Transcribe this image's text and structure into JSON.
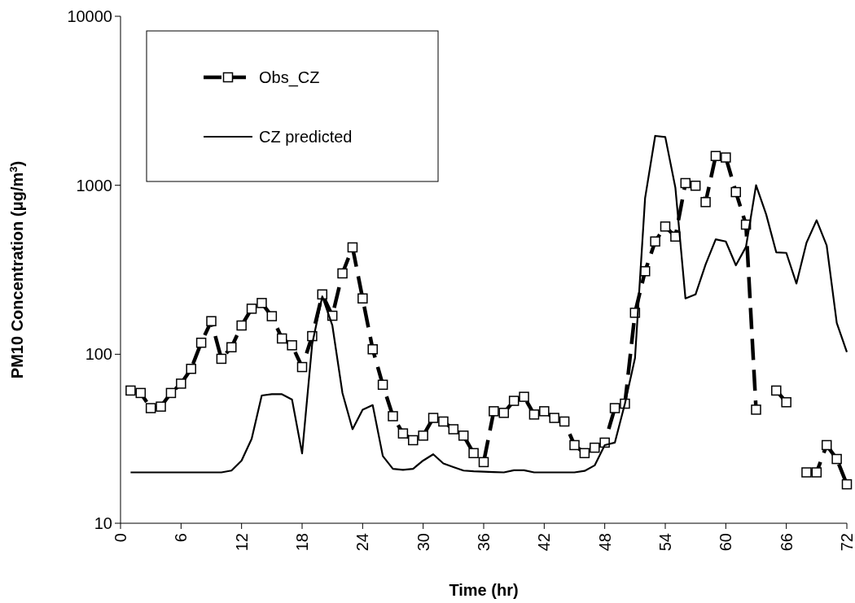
{
  "chart_data": {
    "type": "line",
    "xlabel": "Time (hr)",
    "ylabel": "PM10 Concentration (μg/m$^{3}$)",
    "xlim": [
      0,
      72
    ],
    "xticks": [
      0,
      6,
      12,
      18,
      24,
      30,
      36,
      42,
      48,
      54,
      60,
      66,
      72
    ],
    "ylim": [
      10,
      10000
    ],
    "yticks": [
      10,
      100,
      1000,
      10000
    ],
    "log": "y",
    "grid": false,
    "legend": "top left",
    "x": [
      1,
      2,
      3,
      4,
      5,
      6,
      7,
      8,
      9,
      10,
      11,
      12,
      13,
      14,
      15,
      16,
      17,
      18,
      19,
      20,
      21,
      22,
      23,
      24,
      25,
      26,
      27,
      28,
      29,
      30,
      31,
      32,
      33,
      34,
      35,
      36,
      37,
      38,
      39,
      40,
      41,
      42,
      43,
      44,
      45,
      46,
      47,
      48,
      49,
      50,
      51,
      52,
      53,
      54,
      55,
      56,
      57,
      58,
      59,
      60,
      61,
      62,
      63,
      64,
      65,
      66,
      67,
      68,
      69,
      70,
      71,
      72
    ],
    "series": [
      {
        "name": "Obs_CZ",
        "color": "#000000",
        "marker": "square",
        "line_style": "dashed",
        "values": [
          61,
          59,
          48,
          49,
          59,
          67,
          82,
          117,
          157,
          94,
          110,
          148,
          186,
          201,
          168,
          124,
          113,
          84,
          128,
          226,
          169,
          301,
          429,
          214,
          107,
          66,
          43,
          34,
          31,
          33,
          42,
          40,
          36,
          33,
          26,
          23,
          46,
          45,
          53,
          56,
          44,
          46,
          42,
          40,
          29,
          26,
          28,
          30,
          48,
          51,
          176,
          310,
          465,
          570,
          497,
          1030,
          994,
          795,
          1490,
          1460,
          911,
          585,
          47,
          null,
          61,
          52,
          null,
          20,
          20,
          29,
          24,
          17
        ]
      },
      {
        "name": "CZ predicted",
        "color": "#000000",
        "marker": "none",
        "line_style": "solid",
        "values": [
          20,
          20,
          20,
          20,
          20,
          20,
          20,
          20,
          20,
          20,
          20.5,
          23.5,
          31.6,
          57,
          58,
          58,
          54,
          25.9,
          115,
          220,
          148,
          59,
          36,
          47,
          50,
          25,
          21,
          20.7,
          21,
          23.5,
          25.6,
          22.6,
          21.5,
          20.5,
          20.3,
          20.2,
          20.1,
          20,
          20.6,
          20.6,
          20,
          20,
          20,
          20,
          20,
          20.4,
          22,
          29,
          30,
          51,
          95,
          840,
          1960,
          1930,
          970,
          214,
          226,
          340,
          479,
          465,
          336,
          432,
          1000,
          673,
          401,
          398,
          262,
          457,
          621,
          440,
          153,
          103
        ]
      }
    ]
  }
}
